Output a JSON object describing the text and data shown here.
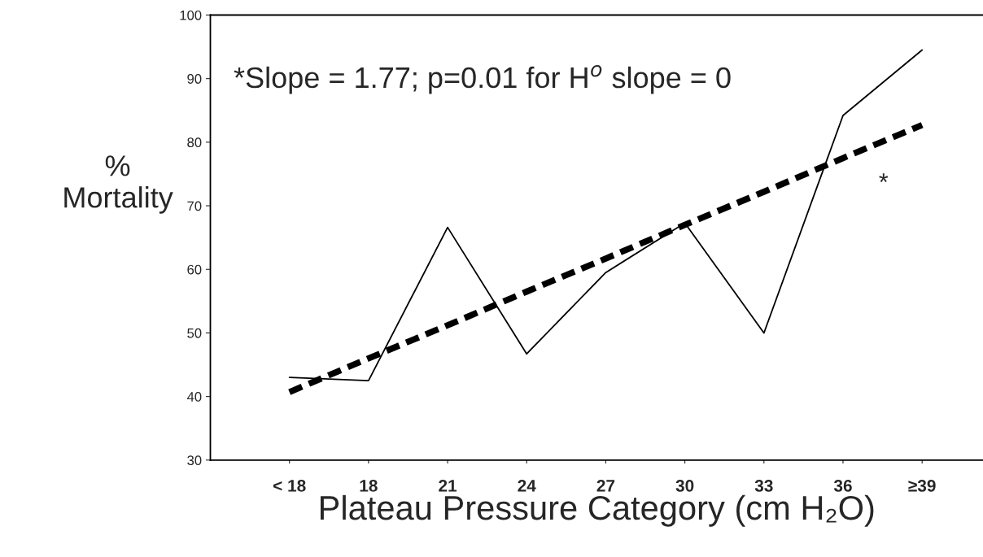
{
  "chart_data": {
    "type": "line",
    "xlabel": "Plateau Pressure Category (cm H₂O)",
    "ylabel": "%\nMortality",
    "categories": [
      "< 18",
      "18",
      "21",
      "24",
      "27",
      "30",
      "33",
      "36",
      "≥39"
    ],
    "series": [
      {
        "color": "#000000",
        "line_style": "solid",
        "values": [
          43.0,
          42.5,
          66.6,
          46.7,
          59.5,
          67.3,
          50.0,
          84.2,
          94.5
        ]
      },
      {
        "color": "#000000",
        "line_style": "dashed",
        "values": [
          40.7,
          46.0,
          51.2,
          56.5,
          61.7,
          67.0,
          72.2,
          77.5,
          82.7
        ]
      }
    ],
    "ylim": [
      30,
      100
    ],
    "yticks": [
      30,
      40,
      50,
      60,
      70,
      80,
      90,
      100
    ],
    "grid": false,
    "legend": false,
    "annotations": [
      "*Slope = 1.77; p=0.01 for H$^{o}$ slope = 0",
      "*"
    ]
  }
}
